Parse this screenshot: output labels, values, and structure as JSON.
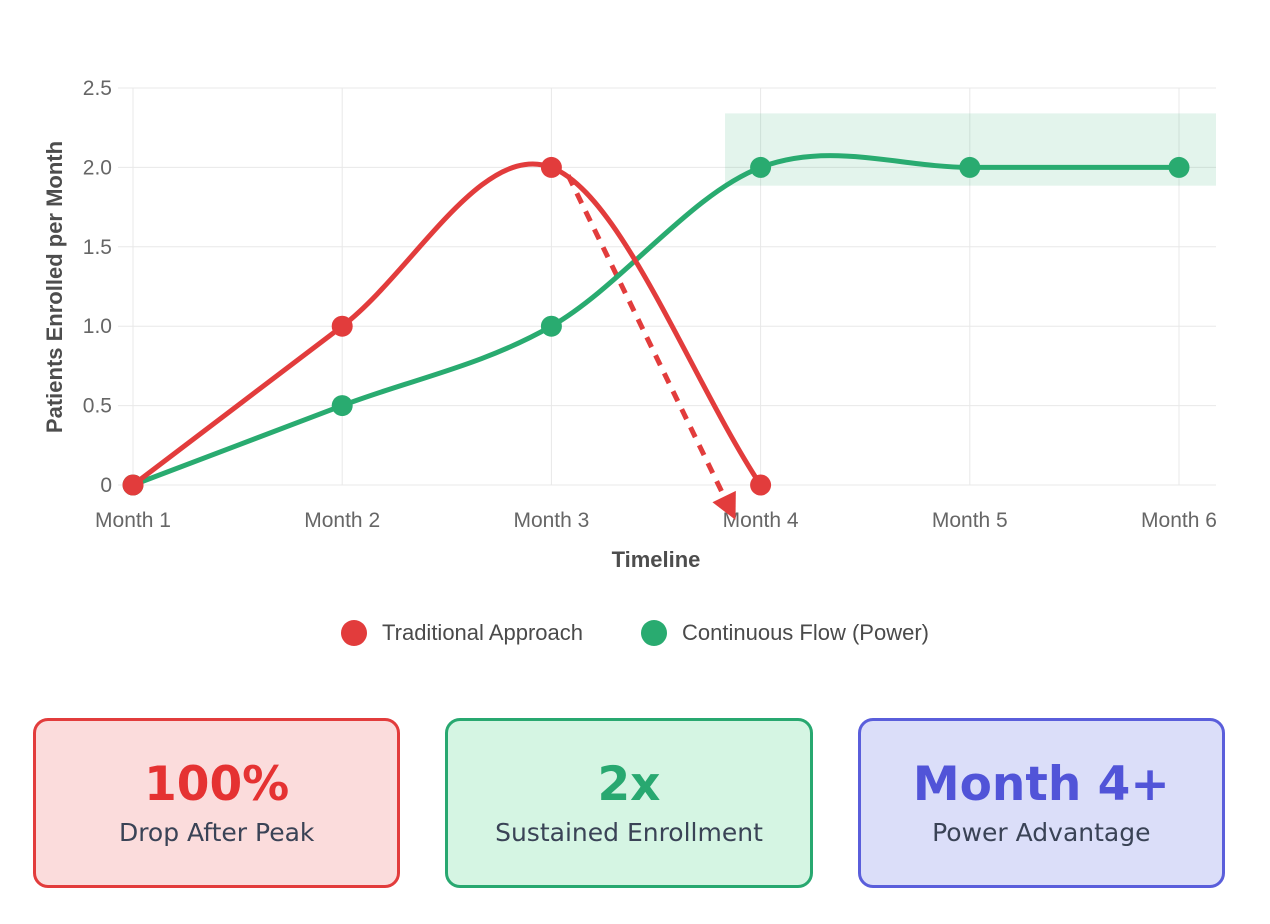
{
  "chart_data": {
    "type": "line",
    "title": "",
    "xlabel": "Timeline",
    "ylabel": "Patients Enrolled per Month",
    "categories": [
      "Month 1",
      "Month 2",
      "Month 3",
      "Month 4",
      "Month 5",
      "Month 6"
    ],
    "ylim": [
      0,
      2.5
    ],
    "grid": true,
    "legend_position": "bottom",
    "y_ticks": [
      {
        "label": "0",
        "value": 0
      },
      {
        "label": "0.5",
        "value": 0.5
      },
      {
        "label": "1.0",
        "value": 1
      },
      {
        "label": "1.5",
        "value": 1.5
      },
      {
        "label": "2.0",
        "value": 2
      },
      {
        "label": "2.5",
        "value": 2.5
      }
    ],
    "series": [
      {
        "name": "Traditional Approach",
        "color": "#e23c3c",
        "style": "solid",
        "values": [
          0,
          1,
          2,
          0,
          null,
          null
        ]
      },
      {
        "name": "Continuous Flow (Power)",
        "color": "#29ab70",
        "style": "solid",
        "values": [
          0,
          0.5,
          1,
          2,
          2,
          2
        ]
      }
    ],
    "annotations": {
      "drop_arrow": {
        "description": "dashed red arrow showing traditional enrollment collapse after peak",
        "style": "dashed",
        "color": "#e23c3c",
        "from": {
          "month": 3.08,
          "value": 1.95
        },
        "to": {
          "month": 3.88,
          "value": -0.22
        }
      },
      "highlight_band": {
        "description": "sustained enrollment zone for continuous flow",
        "color": "rgba(41,171,112,0.13)",
        "month_from": 3.83,
        "month_to": 6.18,
        "value_from": 1.885,
        "value_to": 2.34
      }
    }
  },
  "cards": [
    {
      "value": "100%",
      "label": "Drop After Peak",
      "accent": "#e53232",
      "border": "#e23c3c",
      "background": "#fbdcdc"
    },
    {
      "value": "2x",
      "label": "Sustained Enrollment",
      "accent": "#28a870",
      "border": "#28a870",
      "background": "#d5f5e3"
    },
    {
      "value": "Month 4+",
      "label": "Power Advantage",
      "accent": "#5154d8",
      "border": "#5a5edb",
      "background": "#dbdef9"
    }
  ]
}
